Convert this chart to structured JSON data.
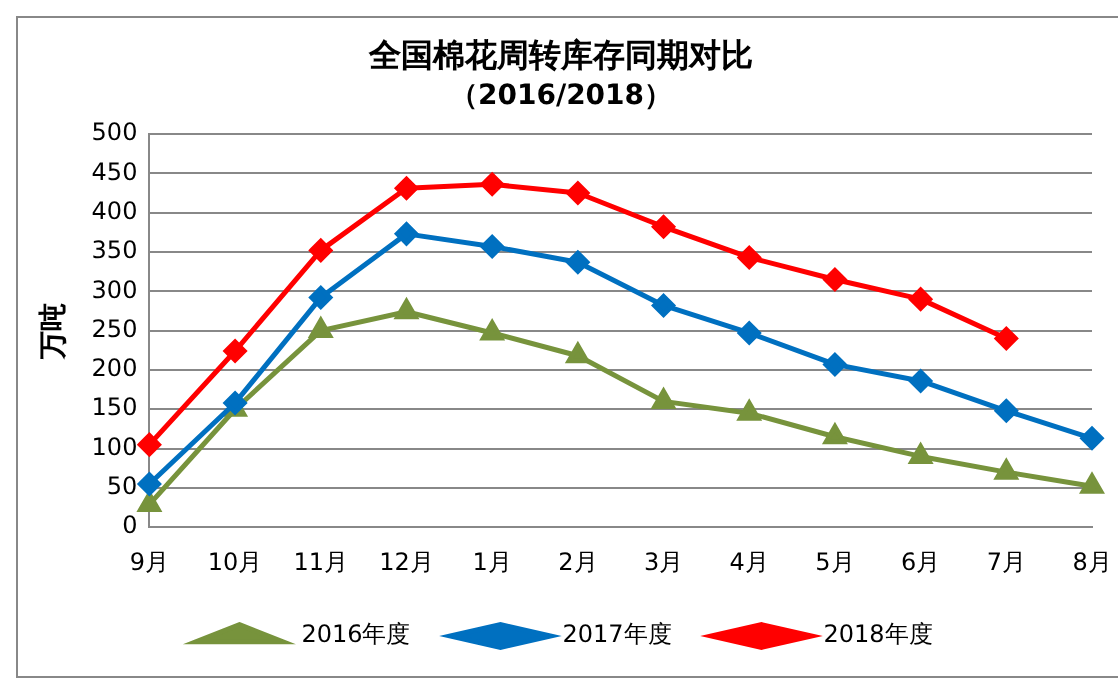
{
  "chart_data": {
    "type": "line",
    "title": "全国棉花周转库存同期对比",
    "subtitle": "（2016/2018）",
    "ylabel": "万吨",
    "categories": [
      "9月",
      "10月",
      "11月",
      "12月",
      "1月",
      "2月",
      "3月",
      "4月",
      "5月",
      "6月",
      "7月",
      "8月"
    ],
    "series": [
      {
        "name": "2016年度",
        "color": "#77933c",
        "marker": "triangle",
        "values": [
          29,
          150,
          250,
          274,
          247,
          218,
          160,
          145,
          115,
          90,
          70,
          52
        ]
      },
      {
        "name": "2017年度",
        "color": "#0070c0",
        "marker": "diamond",
        "values": [
          55,
          158,
          292,
          373,
          357,
          337,
          282,
          247,
          207,
          186,
          148,
          113
        ]
      },
      {
        "name": "2018年度",
        "color": "#ff0000",
        "marker": "diamond",
        "values": [
          105,
          224,
          352,
          431,
          436,
          425,
          382,
          343,
          315,
          290,
          240,
          null
        ]
      }
    ],
    "ylim": [
      0,
      500
    ],
    "yticks": [
      0,
      50,
      100,
      150,
      200,
      250,
      300,
      350,
      400,
      450,
      500
    ],
    "grid": "y",
    "legend": "bottom",
    "line_style": "solid"
  }
}
